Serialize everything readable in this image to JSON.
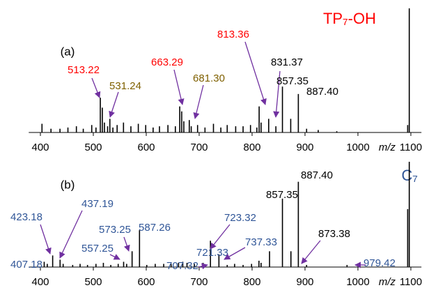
{
  "chart_data": [
    {
      "type": "bar",
      "label": "(a)",
      "title": "TP₇-OH",
      "title_color": "#ff0000",
      "xlabel": "m/z",
      "color": "#000000",
      "xlim": [
        378,
        1120
      ],
      "ylim": [
        0,
        100
      ],
      "xticks": [
        400,
        500,
        600,
        700,
        800,
        900,
        1000,
        1100
      ],
      "x": [
        403,
        420,
        437,
        452,
        468,
        481,
        497,
        505,
        513.22,
        517,
        521,
        527,
        531.24,
        537,
        545,
        557,
        571,
        585,
        599,
        613,
        625,
        641,
        655,
        663.29,
        667,
        671,
        681.3,
        685,
        697,
        711,
        727,
        741,
        753,
        769,
        783,
        797,
        809,
        813.36,
        817,
        831.37,
        845,
        857.35,
        873,
        887.4,
        903,
        925,
        960,
        1094,
        1097
      ],
      "values": [
        7,
        3,
        3,
        4,
        5,
        3,
        6,
        4,
        28,
        20,
        8,
        5,
        11,
        4,
        6,
        8,
        5,
        7,
        6,
        4,
        5,
        6,
        5,
        21,
        17,
        9,
        10,
        5,
        6,
        4,
        7,
        4,
        6,
        5,
        5,
        6,
        4,
        21,
        8,
        11,
        5,
        37,
        11,
        31,
        3,
        2,
        1,
        6,
        100
      ],
      "annotations": [
        {
          "text": "513.22",
          "color": "#ff0000"
        },
        {
          "text": "531.24",
          "color": "#7f6000"
        },
        {
          "text": "663.29",
          "color": "#ff0000"
        },
        {
          "text": "681.30",
          "color": "#7f6000"
        },
        {
          "text": "813.36",
          "color": "#ff0000"
        },
        {
          "text": "831.37",
          "color": "#000000"
        },
        {
          "text": "857.35",
          "color": "#000000"
        },
        {
          "text": "887.40",
          "color": "#000000"
        }
      ]
    },
    {
      "type": "bar",
      "label": "(b)",
      "title": "C₇",
      "title_color": "#2f5597",
      "xlabel": "m/z",
      "color": "#000000",
      "xlim": [
        378,
        1120
      ],
      "ylim": [
        0,
        100
      ],
      "xticks": [
        400,
        500,
        600,
        700,
        800,
        900,
        1000,
        1100
      ],
      "x": [
        407.18,
        413,
        423.18,
        437.19,
        443,
        461,
        475,
        489,
        505,
        519,
        533,
        547,
        557.25,
        563,
        573.25,
        587.26,
        601,
        617,
        633,
        647,
        661,
        669,
        677,
        691,
        707.32,
        721.33,
        737.33,
        753,
        767,
        783,
        799,
        813,
        817,
        833,
        857.35,
        873.38,
        887.4,
        903,
        979.42,
        1094,
        1097
      ],
      "values": [
        5,
        3,
        11,
        7,
        3,
        2,
        3,
        2,
        3,
        4,
        2,
        3,
        5,
        3,
        15,
        35,
        2,
        3,
        3,
        3,
        4,
        5,
        4,
        3,
        4,
        25,
        12,
        2,
        3,
        2,
        3,
        6,
        4,
        15,
        65,
        15,
        81,
        2,
        2,
        55,
        100
      ],
      "annotations": [
        {
          "text": "423.18",
          "color": "#2f5597"
        },
        {
          "text": "437.19",
          "color": "#2f5597"
        },
        {
          "text": "407.18",
          "color": "#2f5597"
        },
        {
          "text": "573.25",
          "color": "#2f5597"
        },
        {
          "text": "587.26",
          "color": "#2f5597"
        },
        {
          "text": "557.25",
          "color": "#2f5597"
        },
        {
          "text": "707.32",
          "color": "#2f5597"
        },
        {
          "text": "721.33",
          "color": "#2f5597"
        },
        {
          "text": "723.32",
          "color": "#2f5597"
        },
        {
          "text": "737.33",
          "color": "#2f5597"
        },
        {
          "text": "857.35",
          "color": "#000000"
        },
        {
          "text": "887.40",
          "color": "#000000"
        },
        {
          "text": "873.38",
          "color": "#000000"
        },
        {
          "text": "979.42",
          "color": "#2f5597"
        }
      ]
    }
  ]
}
